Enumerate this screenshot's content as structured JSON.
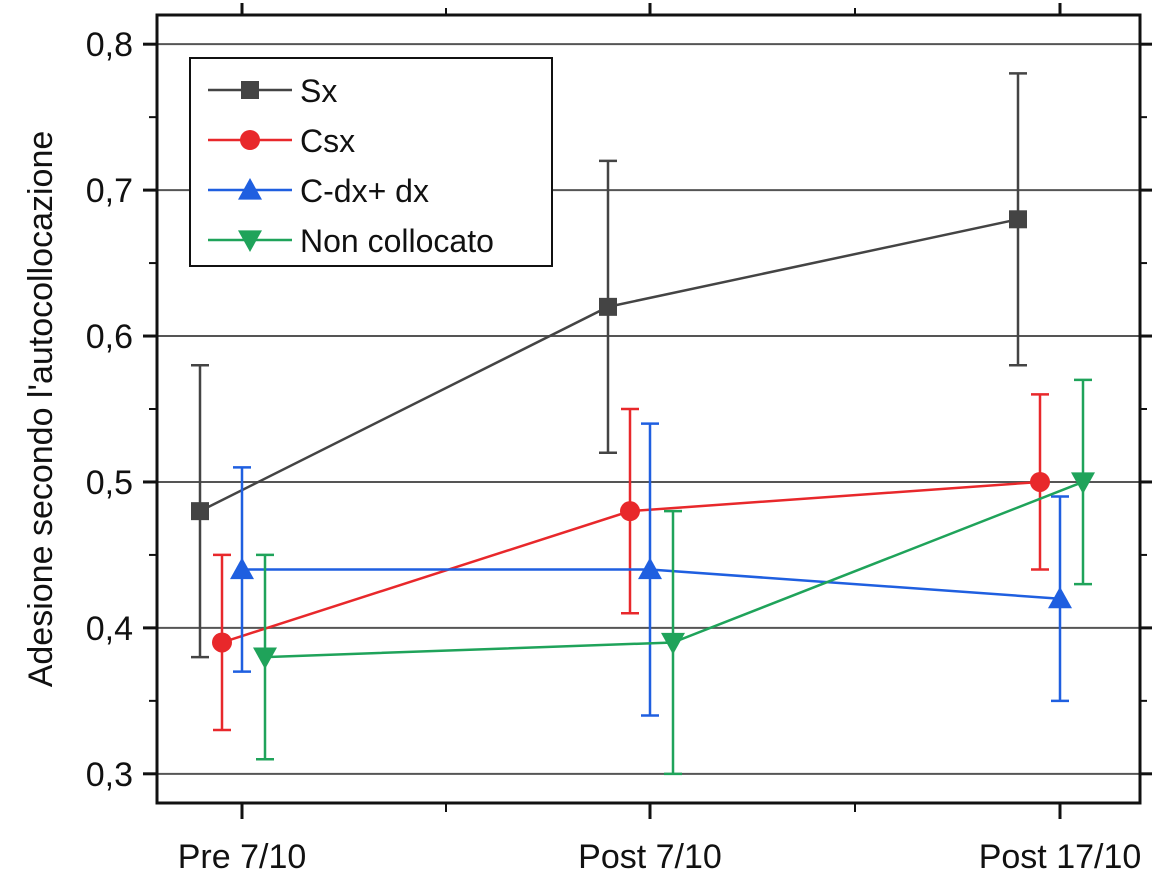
{
  "chart_data": {
    "type": "line",
    "title": "",
    "xlabel": "",
    "ylabel": "Adesione secondo l'autocollocazione",
    "categories": [
      "Pre 7/10",
      "Post 7/10",
      "Post 17/10"
    ],
    "ylim": [
      0.28,
      0.82
    ],
    "yticks": [
      0.3,
      0.4,
      0.5,
      0.6,
      0.7,
      0.8
    ],
    "ytick_labels": [
      "0,3",
      "0,4",
      "0,5",
      "0,6",
      "0,7",
      "0,8"
    ],
    "grid": "horizontal",
    "legend_position": "top-left",
    "series": [
      {
        "name": "Sx",
        "color": "#444444",
        "marker": "square",
        "values": [
          0.48,
          0.62,
          0.68
        ],
        "err_low": [
          0.38,
          0.52,
          0.58
        ],
        "err_high": [
          0.58,
          0.72,
          0.78
        ]
      },
      {
        "name": "Csx",
        "color": "#e8282b",
        "marker": "circle",
        "values": [
          0.39,
          0.48,
          0.5
        ],
        "err_low": [
          0.33,
          0.41,
          0.44
        ],
        "err_high": [
          0.45,
          0.55,
          0.56
        ]
      },
      {
        "name": "C-dx+ dx",
        "color": "#1f5fe0",
        "marker": "triangle-up",
        "values": [
          0.44,
          0.44,
          0.42
        ],
        "err_low": [
          0.37,
          0.34,
          0.35
        ],
        "err_high": [
          0.51,
          0.54,
          0.49
        ]
      },
      {
        "name": "Non collocato",
        "color": "#1fa35a",
        "marker": "triangle-down",
        "values": [
          0.38,
          0.39,
          0.5
        ],
        "err_low": [
          0.31,
          0.3,
          0.43
        ],
        "err_high": [
          0.45,
          0.48,
          0.57
        ]
      }
    ]
  }
}
